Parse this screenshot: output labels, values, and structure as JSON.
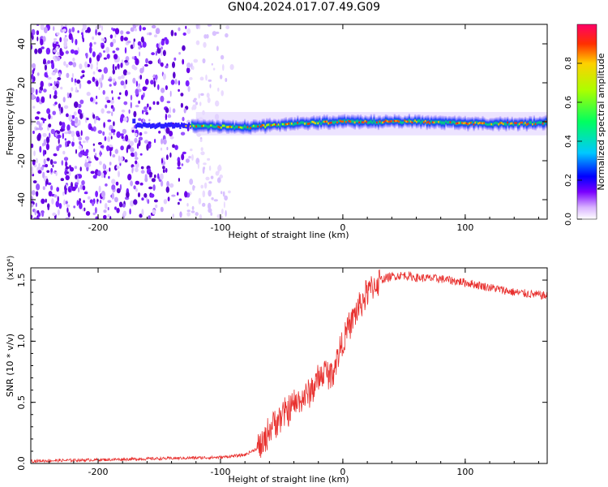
{
  "title": "GN04.2024.017.07.49.G09",
  "chart_data": [
    {
      "type": "heatmap",
      "xlabel": "Height of straight line (km)",
      "ylabel": "Frequency (Hz)",
      "xlim": [
        -255,
        167
      ],
      "ylim": [
        -50,
        50
      ],
      "xticks": [
        -200,
        -100,
        0,
        100
      ],
      "yticks": [
        -40,
        -20,
        0,
        20,
        40
      ],
      "colorbar": {
        "label": "Normalized spectral amplitude",
        "range": [
          0,
          1
        ],
        "ticks": [
          "0.0",
          "0.2",
          "0.4",
          "0.6",
          "0.8"
        ],
        "tick_values": [
          0,
          0.2,
          0.4,
          0.6,
          0.8
        ]
      },
      "description_ridge": [
        {
          "x": -170,
          "freq": -2
        },
        {
          "x": -120,
          "freq": -2
        },
        {
          "x": -80,
          "freq": -3
        },
        {
          "x": -40,
          "freq": -1
        },
        {
          "x": 0,
          "freq": 0
        },
        {
          "x": 60,
          "freq": 0
        },
        {
          "x": 120,
          "freq": -1
        },
        {
          "x": 165,
          "freq": -1
        }
      ],
      "noise_region_x": [
        -255,
        -90
      ]
    },
    {
      "type": "line",
      "xlabel": "Height of straight line (km)",
      "ylabel": "SNR (10 * v/v)",
      "ymultiplier": "(x10⁴)",
      "xlim": [
        -255,
        167
      ],
      "ylim": [
        0,
        1.6
      ],
      "xticks": [
        -200,
        -100,
        0,
        100
      ],
      "yticks": [
        0,
        0.5,
        1.0,
        1.5
      ],
      "ytick_labels": [
        "0.0",
        "0.5",
        "1.0",
        "1.5"
      ],
      "color": "#e8302e",
      "series": [
        {
          "x": [
            -255,
            -200,
            -150,
            -100,
            -80,
            -65,
            -60,
            -55,
            -50,
            -40,
            -30,
            -20,
            -15,
            -10,
            -5,
            0,
            10,
            20,
            30,
            40,
            50,
            60,
            80,
            100,
            120,
            140,
            167
          ],
          "values": [
            0.02,
            0.03,
            0.04,
            0.05,
            0.07,
            0.15,
            0.28,
            0.35,
            0.38,
            0.48,
            0.55,
            0.68,
            0.75,
            0.72,
            0.85,
            1.0,
            1.22,
            1.4,
            1.5,
            1.53,
            1.54,
            1.52,
            1.51,
            1.48,
            1.44,
            1.4,
            1.37
          ]
        }
      ]
    }
  ]
}
